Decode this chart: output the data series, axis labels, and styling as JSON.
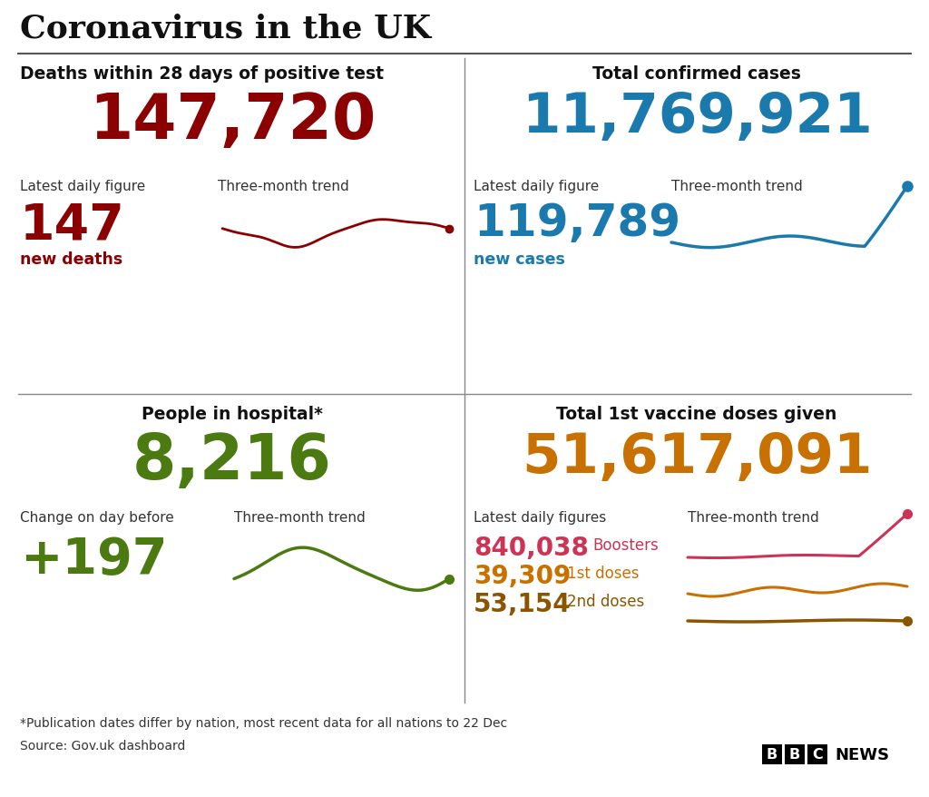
{
  "title": "Coronavirus in the UK",
  "bg_color": "#ffffff",
  "title_color": "#111111",
  "q1_header": "Deaths within 28 days of positive test",
  "q1_big_number": "147,720",
  "q1_big_color": "#8b0000",
  "q1_sub_label1": "Latest daily figure",
  "q1_sub_label2": "Three-month trend",
  "q1_daily": "147",
  "q1_daily_color": "#8b0000",
  "q1_daily_label": "new deaths",
  "q1_trend_color": "#8b0000",
  "q2_header": "Total confirmed cases",
  "q2_big_number": "11,769,921",
  "q2_big_color": "#1a7aad",
  "q2_sub_label1": "Latest daily figure",
  "q2_sub_label2": "Three-month trend",
  "q2_daily": "119,789",
  "q2_daily_color": "#1a7aad",
  "q2_daily_label": "new cases",
  "q2_trend_color": "#1a7aad",
  "q3_header": "People in hospital*",
  "q3_big_number": "8,216",
  "q3_big_color": "#4a7a10",
  "q3_sub_label1": "Change on day before",
  "q3_sub_label2": "Three-month trend",
  "q3_daily": "+197",
  "q3_daily_color": "#4a7a10",
  "q3_trend_color": "#4a7a10",
  "q4_header": "Total 1st vaccine doses given",
  "q4_big_number": "51,617,091",
  "q4_big_color": "#c87000",
  "q4_sub_label1": "Latest daily figures",
  "q4_sub_label2": "Three-month trend",
  "q4_booster_val": "840,038",
  "q4_booster_label": "Boosters",
  "q4_booster_color": "#cc3355",
  "q4_dose1_val": "39,309",
  "q4_dose1_label": "1st doses",
  "q4_dose1_color": "#c87000",
  "q4_dose2_val": "53,154",
  "q4_dose2_label": "2nd doses",
  "q4_dose2_color": "#8b5500",
  "q4_trend_booster_color": "#cc3355",
  "q4_trend_dose1_color": "#c87000",
  "q4_trend_dose2_color": "#8b5500",
  "footnote": "*Publication dates differ by nation, most recent data for all nations to 22 Dec",
  "source": "Source: Gov.uk dashboard",
  "footer_color": "#333333",
  "line_color": "#aaaaaa"
}
